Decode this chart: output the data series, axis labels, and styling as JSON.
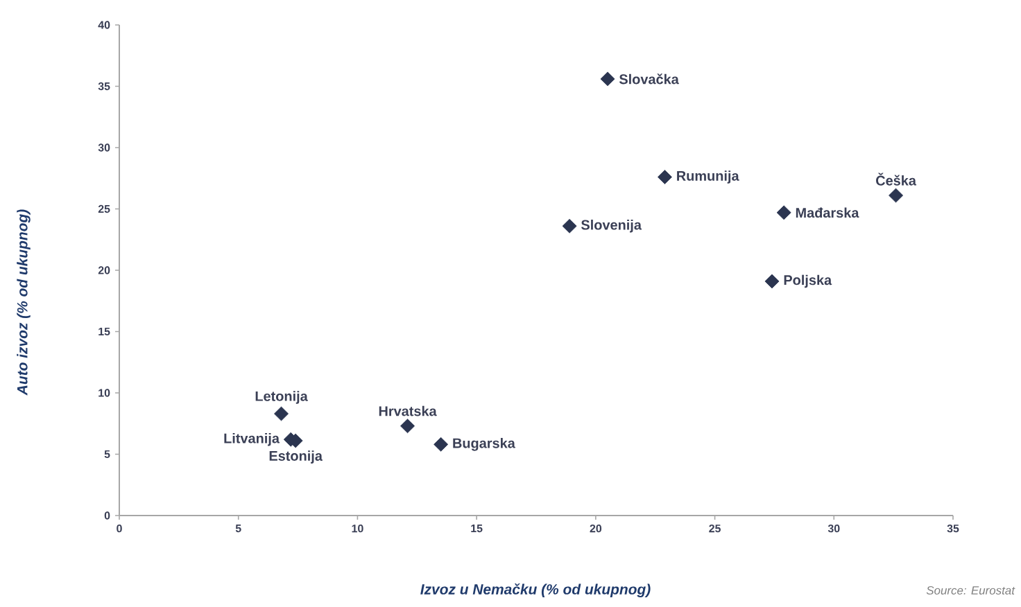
{
  "chart_data": {
    "type": "scatter",
    "xlabel": "Izvoz u Nemačku (% od ukupnog)",
    "ylabel": "Auto izvoz (% od ukupnog)",
    "x": [
      20.5,
      22.9,
      32.6,
      27.9,
      18.9,
      27.4,
      6.8,
      7.2,
      7.4,
      12.1,
      13.5
    ],
    "series": [
      {
        "color": "#2b3550",
        "values": [
          35.6,
          27.6,
          26.1,
          24.7,
          23.6,
          19.1,
          8.3,
          6.2,
          6.1,
          7.3,
          5.8
        ]
      }
    ],
    "xlim": [
      0,
      35
    ],
    "xticks": [
      0,
      5,
      10,
      15,
      20,
      25,
      30,
      35
    ],
    "ylim": [
      0,
      40
    ],
    "yticks": [
      0,
      5,
      10,
      15,
      20,
      25,
      30,
      35,
      40
    ],
    "marker": "diamond",
    "grid": false,
    "annotations": [
      {
        "text": "Slovačka",
        "x": 20.5,
        "y": 35.6
      },
      {
        "text": "Rumunija",
        "x": 22.9,
        "y": 27.6
      },
      {
        "text": "Češka",
        "x": 32.6,
        "y": 26.1
      },
      {
        "text": "Mađarska",
        "x": 27.9,
        "y": 24.7
      },
      {
        "text": "Slovenija",
        "x": 18.9,
        "y": 23.6
      },
      {
        "text": "Poljska",
        "x": 27.4,
        "y": 19.1
      },
      {
        "text": "Letonija",
        "x": 6.8,
        "y": 8.3
      },
      {
        "text": "Litvanija",
        "x": 7.2,
        "y": 6.2
      },
      {
        "text": "Estonija",
        "x": 7.4,
        "y": 6.1
      },
      {
        "text": "Hrvatska",
        "x": 12.1,
        "y": 7.3
      },
      {
        "text": "Bugarska",
        "x": 13.5,
        "y": 5.8
      },
      "Source: Eurostat"
    ]
  }
}
